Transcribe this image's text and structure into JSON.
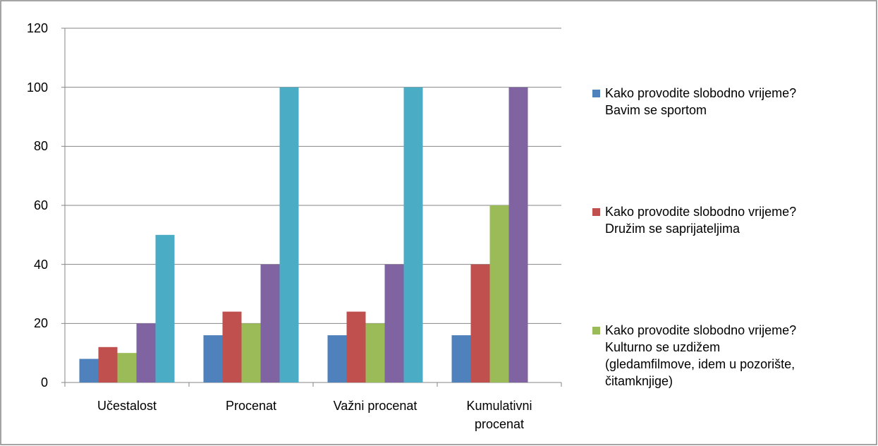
{
  "chart_data": {
    "type": "bar",
    "categories": [
      "Učestalost",
      "Procenat",
      "Važni procenat",
      "Kumulativni\nprocenat"
    ],
    "series": [
      {
        "name": "Kako provodite slobodno vrijeme?\nBavim se sportom",
        "color": "#4f81bd",
        "values": [
          8,
          16,
          16,
          16
        ]
      },
      {
        "name": "Kako provodite slobodno vrijeme?\nDružim se saprijateljima",
        "color": "#c0504d",
        "values": [
          12,
          24,
          24,
          40
        ]
      },
      {
        "name": "Kako provodite slobodno vrijeme?\nKulturno se uzdižem\n(gledamfilmove, idem u pozorište,\nčitamknjige)",
        "color": "#9bbb59",
        "values": [
          10,
          20,
          20,
          60
        ]
      },
      {
        "color": "#8064a2",
        "values": [
          20,
          40,
          40,
          100
        ]
      },
      {
        "color": "#4bacc6",
        "values": [
          50,
          100,
          100,
          null
        ]
      }
    ],
    "ylim": [
      0,
      120
    ],
    "yticks": [
      0,
      20,
      40,
      60,
      80,
      100,
      120
    ],
    "grid": true,
    "legend": "right"
  }
}
